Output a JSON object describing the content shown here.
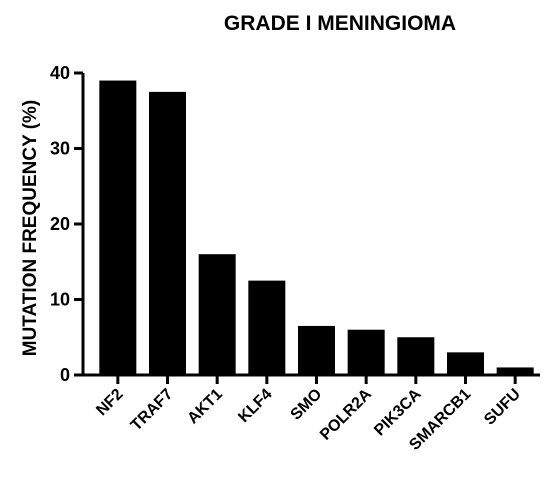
{
  "chart_data": {
    "type": "bar",
    "title": "GRADE I  MENINGIOMA",
    "xlabel": "",
    "ylabel": "MUTATION FREQUENCY (%)",
    "ylim": [
      0,
      40
    ],
    "yticks": [
      0,
      10,
      20,
      30,
      40
    ],
    "categories": [
      "NF2",
      "TRAF7",
      "AKT1",
      "KLF4",
      "SMO",
      "POLR2A",
      "PIK3CA",
      "SMARCB1",
      "SUFU"
    ],
    "values": [
      39,
      37.5,
      16,
      12.5,
      6.5,
      6,
      5,
      3,
      1
    ],
    "bar_color": "#000000",
    "grid": false,
    "legend": "none"
  }
}
